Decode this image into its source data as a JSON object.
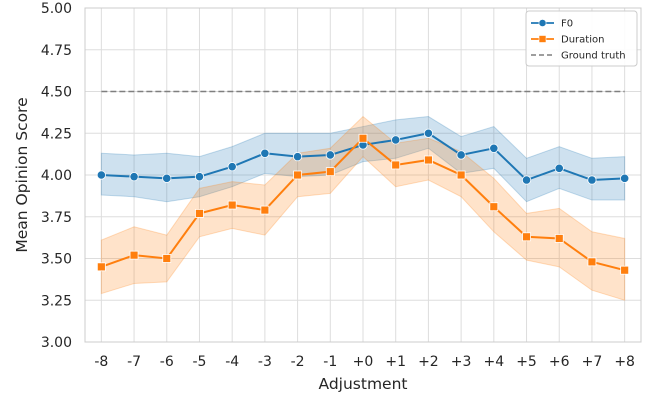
{
  "chart_data": {
    "type": "line",
    "title": "",
    "xlabel": "Adjustment",
    "ylabel": "Mean Opinion Score",
    "categories": [
      "-8",
      "-7",
      "-6",
      "-5",
      "-4",
      "-3",
      "-2",
      "-1",
      "+0",
      "+1",
      "+2",
      "+3",
      "+4",
      "+5",
      "+6",
      "+7",
      "+8"
    ],
    "ylim": [
      3.0,
      5.0
    ],
    "yticks": [
      "3.00",
      "3.25",
      "3.50",
      "3.75",
      "4.00",
      "4.25",
      "4.50",
      "4.75",
      "5.00"
    ],
    "grid": true,
    "legend_position": "top-right",
    "series": [
      {
        "name": "F0",
        "color": "#1f77b4",
        "marker": "circle",
        "values": [
          4.0,
          3.99,
          3.98,
          3.99,
          4.05,
          4.13,
          4.11,
          4.12,
          4.18,
          4.21,
          4.25,
          4.12,
          4.16,
          3.97,
          4.04,
          3.97,
          3.98
        ],
        "ci_lower": [
          3.88,
          3.87,
          3.84,
          3.87,
          3.93,
          4.01,
          3.99,
          4.0,
          4.08,
          4.1,
          4.16,
          4.01,
          4.04,
          3.84,
          3.92,
          3.85,
          3.85
        ],
        "ci_upper": [
          4.13,
          4.12,
          4.13,
          4.11,
          4.17,
          4.25,
          4.25,
          4.25,
          4.29,
          4.33,
          4.35,
          4.23,
          4.29,
          4.1,
          4.17,
          4.1,
          4.11
        ]
      },
      {
        "name": "Duration",
        "color": "#ff7f0e",
        "marker": "square",
        "values": [
          3.45,
          3.52,
          3.5,
          3.77,
          3.82,
          3.79,
          4.0,
          4.02,
          4.22,
          4.06,
          4.09,
          4.0,
          3.81,
          3.63,
          3.62,
          3.48,
          3.43
        ],
        "ci_lower": [
          3.29,
          3.35,
          3.36,
          3.63,
          3.68,
          3.64,
          3.87,
          3.89,
          4.11,
          3.93,
          3.97,
          3.87,
          3.66,
          3.49,
          3.45,
          3.31,
          3.25
        ],
        "ci_upper": [
          3.61,
          3.69,
          3.64,
          3.92,
          3.96,
          3.94,
          4.13,
          4.16,
          4.35,
          4.19,
          4.22,
          4.14,
          3.98,
          3.77,
          3.8,
          3.66,
          3.62
        ]
      }
    ],
    "reference_lines": [
      {
        "name": "Ground truth",
        "value": 4.5,
        "color": "#7f7f7f",
        "style": "dashed"
      }
    ]
  }
}
